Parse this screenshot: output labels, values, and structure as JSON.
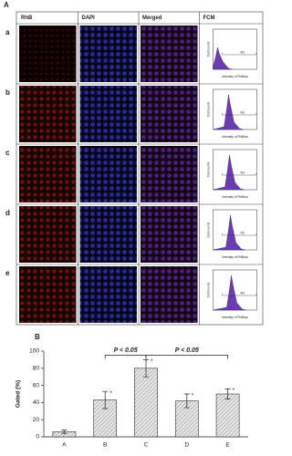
{
  "panel_a": {
    "label": "A",
    "columns": [
      "RhB",
      "DAPI",
      "Merged",
      "FCM"
    ],
    "rows": [
      {
        "label": "a",
        "fcm": {
          "y_label": "Cell counts",
          "x_label": "Intensity of RhB/au",
          "gate": "M1"
        }
      },
      {
        "label": "b",
        "fcm": {
          "y_label": "Cell counts",
          "x_label": "Intensity of RhB/au",
          "gate": "M1"
        }
      },
      {
        "label": "c",
        "fcm": {
          "y_label": "Cell counts",
          "x_label": "Intensity of RhB/au",
          "gate": "M1"
        }
      },
      {
        "label": "d",
        "fcm": {
          "y_label": "Cell counts",
          "x_label": "Intensity of RhB/au",
          "gate": "M1"
        }
      },
      {
        "label": "e",
        "fcm": {
          "y_label": "Cell counts",
          "x_label": "Intensity of RhB/au",
          "gate": "M1"
        }
      }
    ]
  },
  "chart_data": {
    "type": "bar",
    "panel_label": "B",
    "y_label": "Gated (%)",
    "categories": [
      "A",
      "B",
      "C",
      "D",
      "E"
    ],
    "values": [
      6,
      43,
      80,
      42,
      50
    ],
    "errors": [
      2,
      10,
      10,
      8,
      6
    ],
    "asterisks": [
      null,
      "*",
      "*",
      "*",
      "*"
    ],
    "significance": [
      {
        "between": [
          "B",
          "C"
        ],
        "label": "P < 0.05"
      },
      {
        "between": [
          "C",
          "E"
        ],
        "label": "P < 0.05"
      }
    ],
    "color": "#c8c8c8",
    "ylim": [
      0,
      100
    ],
    "yticks": [
      0,
      20,
      40,
      60,
      80,
      100
    ]
  }
}
